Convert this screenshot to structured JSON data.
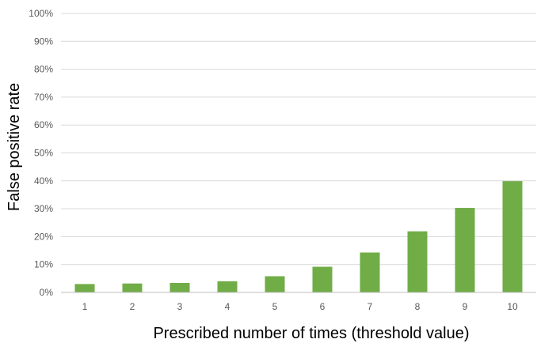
{
  "chart_data": {
    "type": "bar",
    "title": "",
    "xlabel": "Prescribed number of times (threshold value)",
    "ylabel": "False positive rate",
    "categories": [
      "1",
      "2",
      "3",
      "4",
      "5",
      "6",
      "7",
      "8",
      "9",
      "10"
    ],
    "values": [
      0.03,
      0.032,
      0.034,
      0.04,
      0.058,
      0.092,
      0.143,
      0.219,
      0.303,
      0.399
    ],
    "ylim": [
      0,
      1
    ],
    "yticks": [
      "0%",
      "10%",
      "20%",
      "30%",
      "40%",
      "50%",
      "60%",
      "70%",
      "80%",
      "90%",
      "100%"
    ],
    "grid": true,
    "legend": "none",
    "bar_color": "#70ad47"
  }
}
